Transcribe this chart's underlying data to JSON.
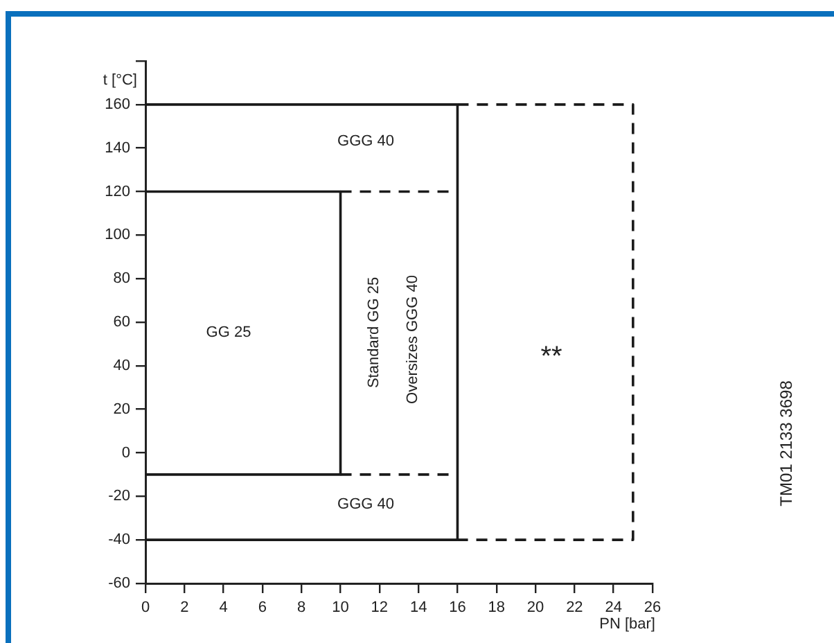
{
  "chart_data": {
    "type": "line",
    "xlabel": "PN [bar]",
    "ylabel": "t [°C]",
    "xlim": [
      0,
      26
    ],
    "xticks": [
      0,
      2,
      4,
      6,
      8,
      10,
      12,
      14,
      16,
      18,
      20,
      22,
      24,
      26
    ],
    "ylim": [
      -60,
      180
    ],
    "yticks": [
      -60,
      -40,
      -20,
      0,
      20,
      40,
      60,
      80,
      100,
      120,
      140,
      160,
      {
        "value": 180,
        "label": null
      }
    ],
    "grid": false,
    "legend": false,
    "marker": "none",
    "series": [
      {
        "color": "#1a1a1a",
        "line_style": "solid",
        "x": [
          0,
          16,
          16,
          0
        ],
        "values": [
          160,
          160,
          -40,
          -40
        ]
      },
      {
        "color": "#1a1a1a",
        "line_style": "solid",
        "x": [
          0,
          10,
          10,
          0
        ],
        "values": [
          120,
          120,
          -10,
          -10
        ]
      },
      {
        "color": "#1a1a1a",
        "line_style": "dashed",
        "x": [
          16,
          25,
          25,
          16
        ],
        "values": [
          160,
          160,
          -40,
          -40
        ]
      },
      {
        "color": "#1a1a1a",
        "line_style": "dashed",
        "x": [
          10,
          16
        ],
        "values": [
          120,
          120
        ]
      },
      {
        "color": "#1a1a1a",
        "line_style": "dashed",
        "x": [
          10,
          16
        ],
        "values": [
          -10,
          -10
        ]
      }
    ],
    "annotations": [
      "GGG 40",
      "GG 25",
      "Standard GG 25",
      "Oversizes GGG 40",
      "**",
      "GGG 40",
      "TM01 2133 3698"
    ]
  }
}
